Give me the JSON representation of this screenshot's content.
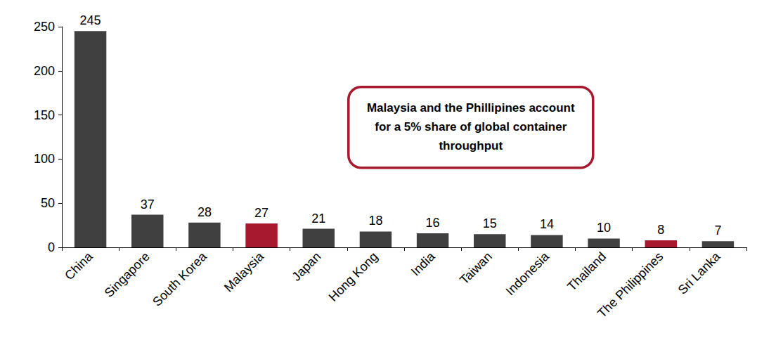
{
  "chart_data": {
    "type": "bar",
    "categories": [
      "China",
      "Singapore",
      "South Korea",
      "Malaysia",
      "Japan",
      "Hong Kong",
      "India",
      "Taiwan",
      "Indonesia",
      "Thailand",
      "The Philippines",
      "Sri Lanka"
    ],
    "values": [
      245,
      37,
      28,
      27,
      21,
      18,
      16,
      15,
      14,
      10,
      8,
      7
    ],
    "colors": [
      "#404040",
      "#404040",
      "#404040",
      "#A6192E",
      "#404040",
      "#404040",
      "#404040",
      "#404040",
      "#404040",
      "#404040",
      "#A6192E",
      "#404040"
    ],
    "ylim": [
      0,
      250
    ],
    "yticks": [
      0,
      50,
      100,
      150,
      200,
      250
    ],
    "grid": false,
    "data_labels": true,
    "annotation": "Malaysia and the Phillipines account for a 5% share of global container throughput"
  }
}
